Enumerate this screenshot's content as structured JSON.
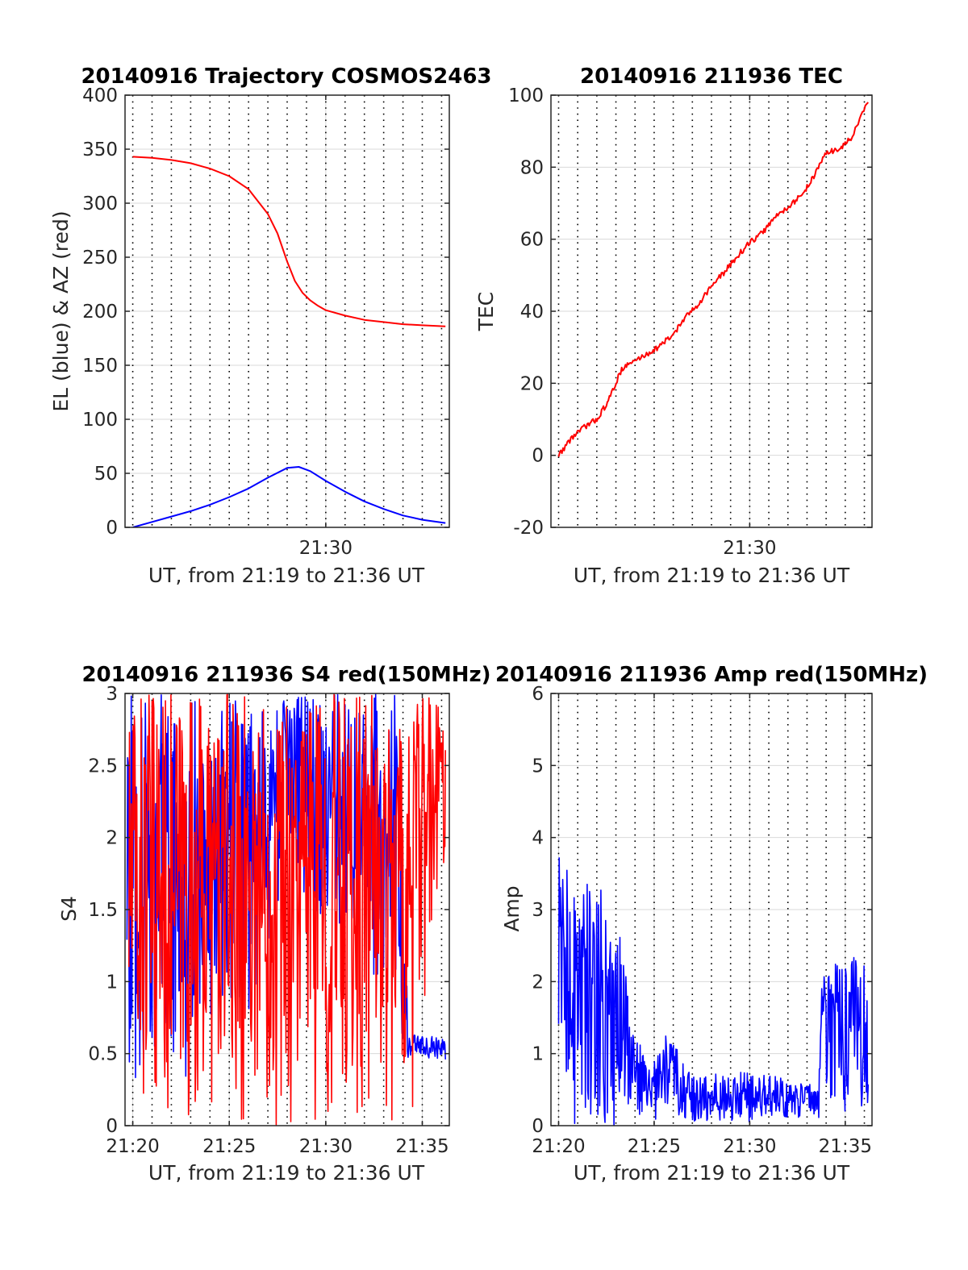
{
  "colors": {
    "el": "#0000ff",
    "az": "#ff0000",
    "tec": "#ff0000",
    "grid": "#d9d9d9",
    "vline": "#000000"
  },
  "chart_data": [
    {
      "type": "line",
      "title": "20140916 Trajectory COSMOS2463",
      "xlabel": "UT, from 21:19 to 21:36 UT",
      "ylabel": "EL (blue) & AZ (red)",
      "xlim_min": [
        19.6,
        36.4
      ],
      "ylim": [
        0,
        400
      ],
      "yticks": [
        0,
        50,
        100,
        150,
        200,
        250,
        300,
        350,
        400
      ],
      "xticks": [
        30
      ],
      "xtick_labels": [
        "21:30"
      ],
      "grid": true,
      "series": [
        {
          "color": "red",
          "x": [
            20,
            21,
            22,
            23,
            24,
            25,
            26,
            27,
            27.5,
            28,
            28.4,
            28.8,
            29.2,
            29.6,
            30,
            31,
            32,
            33,
            34,
            35,
            36.2
          ],
          "y": [
            343,
            342,
            340,
            337,
            332,
            325,
            313,
            290,
            272,
            246,
            228,
            217,
            210,
            205,
            201,
            196,
            192,
            190,
            188,
            187,
            186
          ]
        },
        {
          "color": "blue",
          "x": [
            20,
            21,
            22,
            23,
            24,
            25,
            26,
            27,
            28,
            28.6,
            29.2,
            30,
            31,
            32,
            33,
            34,
            35,
            36.2
          ],
          "y": [
            0,
            5,
            10,
            15,
            21,
            28,
            36,
            46,
            55,
            56,
            52,
            43,
            33,
            24,
            17,
            11,
            7,
            4
          ]
        }
      ]
    },
    {
      "type": "line",
      "title": "20140916 211936 TEC",
      "xlabel": "UT, from 21:19 to 21:36 UT",
      "ylabel": "TEC",
      "xlim_min": [
        19.6,
        36.4
      ],
      "ylim": [
        -20,
        100
      ],
      "yticks": [
        -20,
        0,
        20,
        40,
        60,
        80,
        100
      ],
      "xticks": [
        30
      ],
      "xtick_labels": [
        "21:30"
      ],
      "grid": true,
      "series": [
        {
          "color": "red",
          "x": [
            20,
            20.7,
            21.4,
            22,
            22.6,
            23.3,
            23.9,
            24.6,
            25.2,
            25.9,
            26.6,
            27.3,
            28,
            28.7,
            29.3,
            30,
            30.7,
            31.3,
            32,
            32.7,
            33.3,
            34,
            34.7,
            35.3,
            36.2
          ],
          "y": [
            0,
            5,
            8,
            10,
            15,
            24,
            26,
            28,
            30,
            33,
            38,
            42,
            47,
            51,
            55,
            59,
            62,
            66,
            69,
            72,
            77,
            84,
            85,
            88,
            98
          ]
        }
      ]
    },
    {
      "type": "line",
      "title": "20140916 211936 S4 red(150MHz)",
      "xlabel": "UT, from 21:19 to 21:36 UT",
      "ylabel": "S4",
      "xlim_min": [
        19.6,
        36.4
      ],
      "ylim": [
        0,
        3
      ],
      "yticks": [
        0,
        0.5,
        1,
        1.5,
        2,
        2.5,
        3
      ],
      "ytick_labels": [
        "0",
        "0.5",
        "1",
        "1.5",
        "2",
        "2.5",
        "3"
      ],
      "xticks": [
        20,
        25,
        30,
        35
      ],
      "xtick_labels": [
        "21:20",
        "21:25",
        "21:30",
        "21:35"
      ],
      "grid": true,
      "series": [
        {
          "color": "blue",
          "envelope": [
            {
              "x": 19.7,
              "lo": 0.3,
              "hi": 3
            },
            {
              "x": 21,
              "lo": 0.3,
              "hi": 3
            },
            {
              "x": 23.3,
              "lo": 0.35,
              "hi": 3
            },
            {
              "x": 24,
              "lo": 0.6,
              "hi": 2.8
            },
            {
              "x": 25.5,
              "lo": 0.8,
              "hi": 3
            },
            {
              "x": 26.2,
              "lo": 0.8,
              "hi": 3
            },
            {
              "x": 27.5,
              "lo": 1.4,
              "hi": 3
            },
            {
              "x": 28.5,
              "lo": 1.6,
              "hi": 3
            },
            {
              "x": 30,
              "lo": 1.3,
              "hi": 3
            },
            {
              "x": 31.5,
              "lo": 1.4,
              "hi": 3
            },
            {
              "x": 33.6,
              "lo": 0.55,
              "hi": 3
            },
            {
              "x": 34.3,
              "lo": 0.45,
              "hi": 0.65
            },
            {
              "x": 36.2,
              "lo": 0.45,
              "hi": 0.6
            }
          ]
        },
        {
          "color": "red",
          "envelope": [
            {
              "x": 19.8,
              "lo": 0,
              "hi": 3
            },
            {
              "x": 23.3,
              "lo": 0,
              "hi": 3
            },
            {
              "x": 24,
              "lo": 0,
              "hi": 3
            },
            {
              "x": 27,
              "lo": 0,
              "hi": 3
            },
            {
              "x": 31.5,
              "lo": 0,
              "hi": 3
            },
            {
              "x": 33.5,
              "lo": 0,
              "hi": 3
            },
            {
              "x": 34.5,
              "lo": 0,
              "hi": 3
            },
            {
              "x": 36.2,
              "lo": 1.9,
              "hi": 3
            }
          ]
        }
      ]
    },
    {
      "type": "line",
      "title": "20140916 211936 Amp red(150MHz)",
      "xlabel": "UT, from 21:19 to 21:36 UT",
      "ylabel": "Amp",
      "xlim_min": [
        19.6,
        36.4
      ],
      "ylim": [
        0,
        6
      ],
      "yticks": [
        0,
        1,
        2,
        3,
        4,
        5,
        6
      ],
      "xticks": [
        20,
        25,
        30,
        35
      ],
      "xtick_labels": [
        "21:20",
        "21:25",
        "21:30",
        "21:35"
      ],
      "grid": true,
      "series": [
        {
          "color": "blue",
          "envelope": [
            {
              "x": 20,
              "lo": 0,
              "hi": 3.8
            },
            {
              "x": 21,
              "lo": 0,
              "hi": 3.4
            },
            {
              "x": 22.3,
              "lo": 0,
              "hi": 3.3
            },
            {
              "x": 23.4,
              "lo": 0,
              "hi": 3.2
            },
            {
              "x": 23.7,
              "lo": 0,
              "hi": 1.5
            },
            {
              "x": 24.8,
              "lo": 0.05,
              "hi": 0.8
            },
            {
              "x": 25.7,
              "lo": 0.05,
              "hi": 1.3
            },
            {
              "x": 27,
              "lo": 0.05,
              "hi": 0.7
            },
            {
              "x": 30,
              "lo": 0.05,
              "hi": 0.75
            },
            {
              "x": 33,
              "lo": 0.1,
              "hi": 0.6
            },
            {
              "x": 33.6,
              "lo": 0.1,
              "hi": 0.5
            },
            {
              "x": 33.8,
              "lo": 0.2,
              "hi": 2.3
            },
            {
              "x": 36.2,
              "lo": 0.2,
              "hi": 2.4
            }
          ]
        }
      ]
    }
  ]
}
